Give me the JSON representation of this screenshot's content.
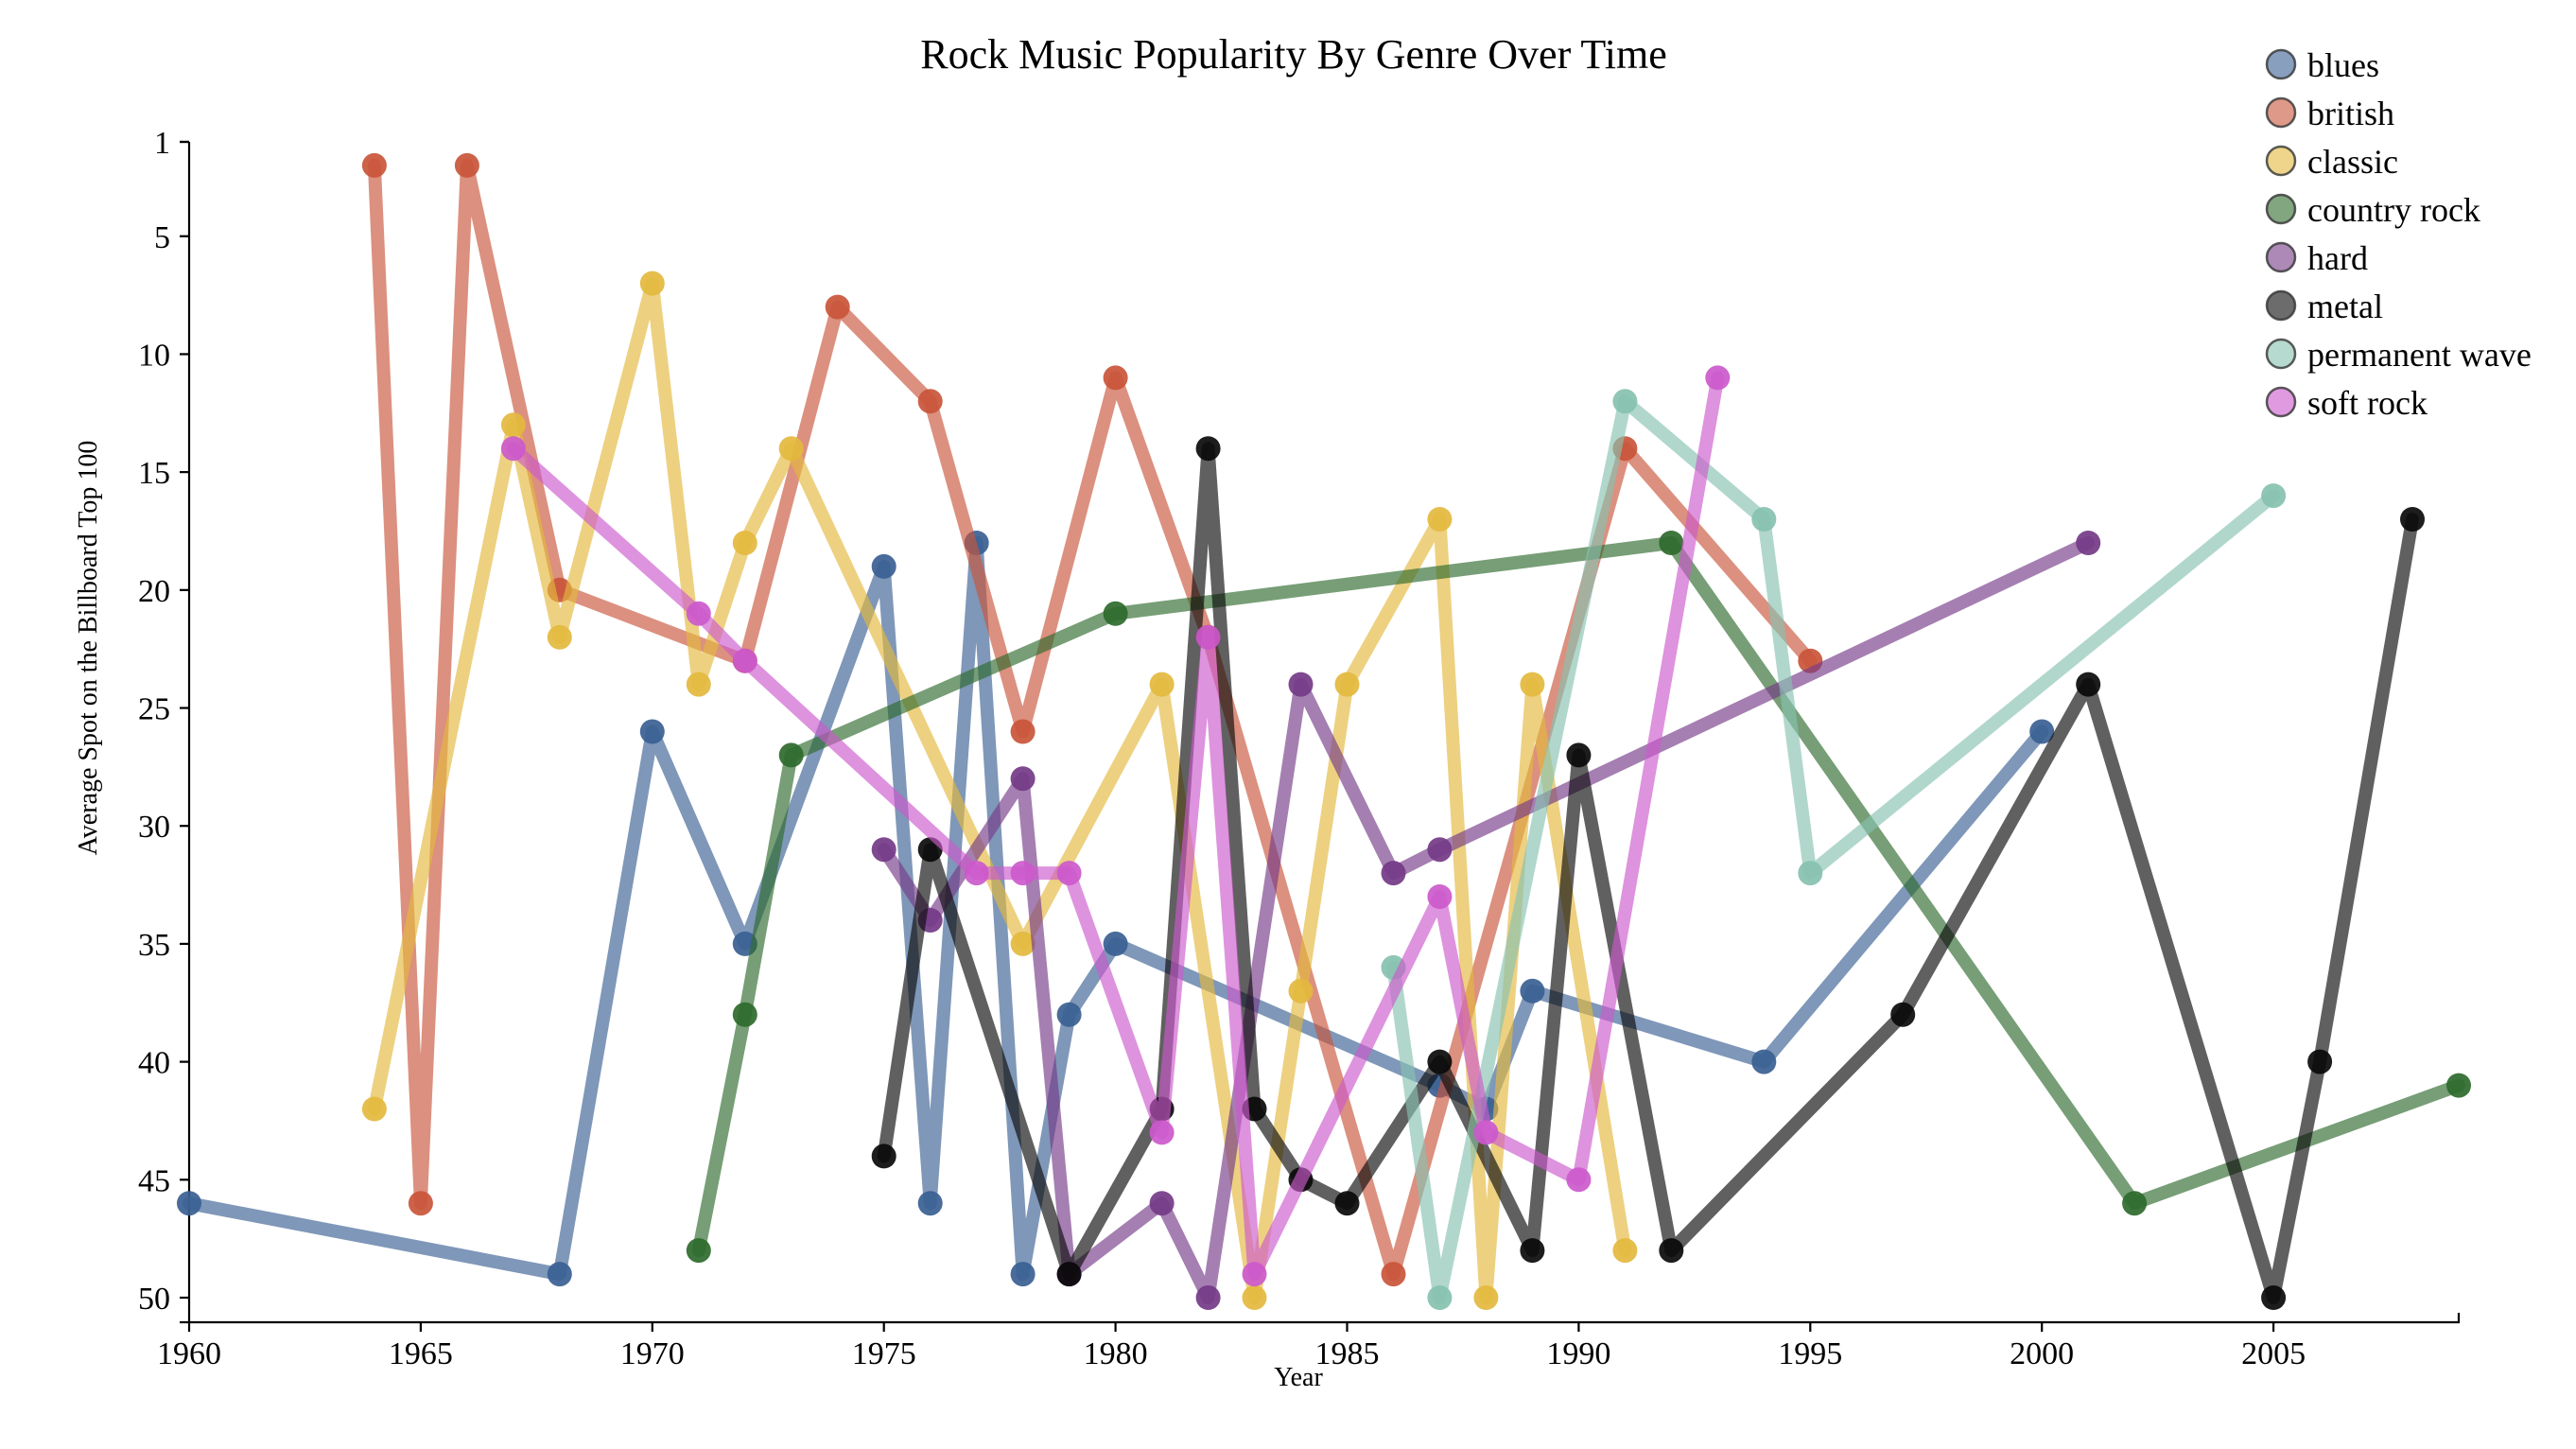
{
  "chart_data": {
    "type": "line",
    "title": "Rock Music Popularity By Genre Over Time",
    "xlabel": "Year",
    "ylabel": "Average Spot on the Billboard Top 100",
    "xlim": [
      1960,
      2009
    ],
    "ylim": [
      1,
      50
    ],
    "y_inverted": true,
    "x_ticks": [
      1960,
      1965,
      1970,
      1975,
      1980,
      1985,
      1990,
      1995,
      2000,
      2005
    ],
    "y_ticks": [
      1,
      5,
      10,
      15,
      20,
      25,
      30,
      35,
      40,
      45,
      50
    ],
    "legend_position": "top-right",
    "grid": false,
    "series": [
      {
        "name": "blues",
        "color": "#3a5f92",
        "points": [
          [
            1960,
            46
          ],
          [
            1968,
            49
          ],
          [
            1970,
            26
          ],
          [
            1972,
            35
          ],
          [
            1975,
            19
          ],
          [
            1976,
            46
          ],
          [
            1977,
            18
          ],
          [
            1978,
            49
          ],
          [
            1979,
            38
          ],
          [
            1980,
            35
          ],
          [
            1987,
            41
          ],
          [
            1988,
            42
          ],
          [
            1989,
            37
          ],
          [
            1994,
            40
          ],
          [
            2000,
            26
          ]
        ]
      },
      {
        "name": "british",
        "color": "#c9553a",
        "points": [
          [
            1964,
            2
          ],
          [
            1965,
            46
          ],
          [
            1966,
            2
          ],
          [
            1968,
            20
          ],
          [
            1972,
            23
          ],
          [
            1974,
            8
          ],
          [
            1976,
            12
          ],
          [
            1978,
            26
          ],
          [
            1980,
            11
          ],
          [
            1982,
            22
          ],
          [
            1986,
            49
          ],
          [
            1991,
            14
          ],
          [
            1995,
            23
          ]
        ]
      },
      {
        "name": "classic",
        "color": "#e3b93e",
        "points": [
          [
            1964,
            42
          ],
          [
            1967,
            13
          ],
          [
            1968,
            22
          ],
          [
            1970,
            7
          ],
          [
            1971,
            24
          ],
          [
            1972,
            18
          ],
          [
            1973,
            14
          ],
          [
            1978,
            35
          ],
          [
            1981,
            24
          ],
          [
            1983,
            50
          ],
          [
            1984,
            37
          ],
          [
            1985,
            24
          ],
          [
            1987,
            17
          ],
          [
            1988,
            50
          ],
          [
            1989,
            24
          ],
          [
            1991,
            48
          ]
        ]
      },
      {
        "name": "country rock",
        "color": "#2e6a2c",
        "points": [
          [
            1971,
            48
          ],
          [
            1972,
            38
          ],
          [
            1973,
            27
          ],
          [
            1980,
            21
          ],
          [
            1992,
            18
          ],
          [
            2002,
            46
          ],
          [
            2009,
            41
          ]
        ]
      },
      {
        "name": "hard",
        "color": "#743a87",
        "points": [
          [
            1975,
            31
          ],
          [
            1976,
            34
          ],
          [
            1978,
            28
          ],
          [
            1979,
            49
          ],
          [
            1981,
            46
          ],
          [
            1982,
            50
          ],
          [
            1984,
            24
          ],
          [
            1986,
            32
          ],
          [
            1987,
            31
          ],
          [
            2001,
            18
          ]
        ]
      },
      {
        "name": "metal",
        "color": "#0a0a0a",
        "points": [
          [
            1975,
            44
          ],
          [
            1976,
            31
          ],
          [
            1979,
            49
          ],
          [
            1981,
            42
          ],
          [
            1982,
            14
          ],
          [
            1983,
            42
          ],
          [
            1984,
            45
          ],
          [
            1985,
            46
          ],
          [
            1987,
            40
          ],
          [
            1989,
            48
          ],
          [
            1990,
            27
          ],
          [
            1992,
            48
          ],
          [
            1997,
            38
          ],
          [
            2001,
            24
          ],
          [
            2005,
            50
          ],
          [
            2006,
            40
          ],
          [
            2008,
            17
          ]
        ]
      },
      {
        "name": "permanent wave",
        "color": "#87c1b0",
        "points": [
          [
            1986,
            36
          ],
          [
            1987,
            50
          ],
          [
            1991,
            12
          ],
          [
            1994,
            17
          ],
          [
            1995,
            32
          ],
          [
            2005,
            16
          ]
        ]
      },
      {
        "name": "soft rock",
        "color": "#cc59cc",
        "points": [
          [
            1967,
            14
          ],
          [
            1971,
            21
          ],
          [
            1972,
            23
          ],
          [
            1977,
            32
          ],
          [
            1978,
            32
          ],
          [
            1979,
            32
          ],
          [
            1981,
            43
          ],
          [
            1982,
            22
          ],
          [
            1983,
            49
          ],
          [
            1987,
            33
          ],
          [
            1988,
            43
          ],
          [
            1990,
            45
          ],
          [
            1993,
            11
          ]
        ]
      }
    ]
  }
}
